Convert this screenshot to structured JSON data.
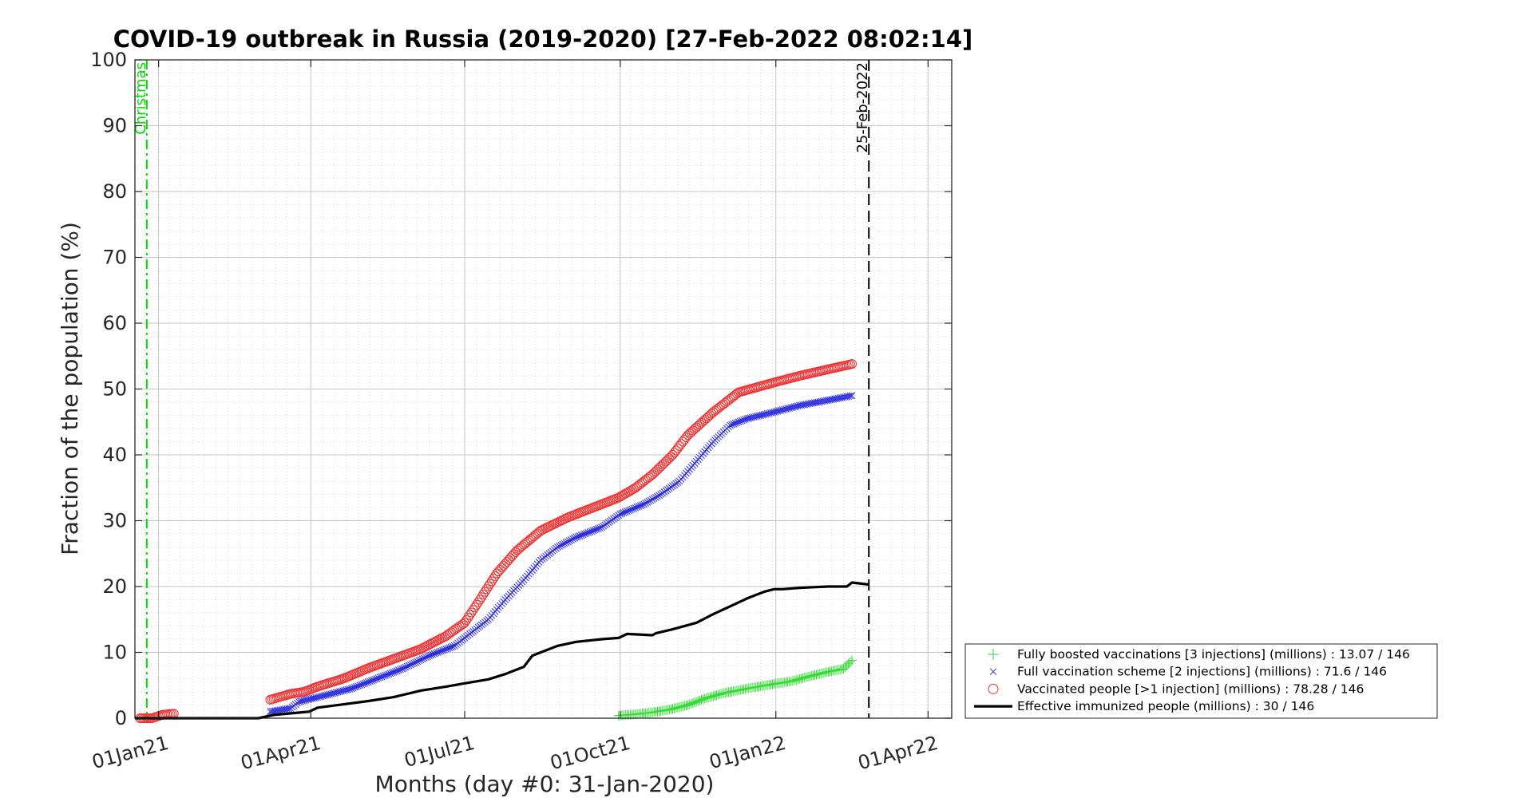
{
  "chart_data": {
    "type": "line",
    "title": "COVID-19 outbreak in Russia (2019-2020) [27-Feb-2022 08:02:14]",
    "xlabel": "Months (day #0: 31-Jan-2020)",
    "ylabel": "Fraction of the population (%)",
    "ylim": [
      0,
      100
    ],
    "xlim": [
      "2020-12-18",
      "2022-04-15"
    ],
    "grid": true,
    "legend_position": "bottom-right, outside plot",
    "yticks": [
      0,
      10,
      20,
      30,
      40,
      50,
      60,
      70,
      80,
      90,
      100
    ],
    "xticks": [
      {
        "date": "2021-01-01",
        "label": "01Jan21"
      },
      {
        "date": "2021-04-01",
        "label": "01Apr21"
      },
      {
        "date": "2021-07-01",
        "label": "01Jul21"
      },
      {
        "date": "2021-10-01",
        "label": "01Oct21"
      },
      {
        "date": "2022-01-01",
        "label": "01Jan22"
      },
      {
        "date": "2022-04-01",
        "label": "01Apr22"
      }
    ],
    "vlines": [
      {
        "date": "2020-12-25",
        "label": "Christmas",
        "color": "#00dd00",
        "style": "dashdot"
      },
      {
        "date": "2022-02-25",
        "label": "25-Feb-2022",
        "color": "#000000",
        "style": "dashed"
      }
    ],
    "series": [
      {
        "name": "Fully boosted vaccinations [3 injections] (millions) : 13.07 / 146",
        "marker": "plus",
        "color": "#33dd33",
        "points": [
          [
            "2021-09-30",
            0.4
          ],
          [
            "2021-10-10",
            0.6
          ],
          [
            "2021-10-20",
            0.9
          ],
          [
            "2021-10-30",
            1.3
          ],
          [
            "2021-11-10",
            2.0
          ],
          [
            "2021-11-20",
            3.0
          ],
          [
            "2021-12-01",
            3.8
          ],
          [
            "2021-12-15",
            4.5
          ],
          [
            "2021-12-31",
            5.2
          ],
          [
            "2022-01-10",
            5.6
          ],
          [
            "2022-01-20",
            6.3
          ],
          [
            "2022-01-31",
            7.0
          ],
          [
            "2022-02-10",
            7.5
          ],
          [
            "2022-02-15",
            8.8
          ]
        ]
      },
      {
        "name": "Full vaccination scheme [2 injections] (millions) : 71.6 / 146",
        "marker": "x",
        "color": "#2a2ae0",
        "points": [
          [
            "2021-03-08",
            1.0
          ],
          [
            "2021-03-20",
            1.5
          ],
          [
            "2021-03-25",
            2.5
          ],
          [
            "2021-04-10",
            3.5
          ],
          [
            "2021-04-25",
            4.5
          ],
          [
            "2021-05-10",
            6.0
          ],
          [
            "2021-05-25",
            7.5
          ],
          [
            "2021-06-10",
            9.5
          ],
          [
            "2021-06-25",
            11.0
          ],
          [
            "2021-07-05",
            13.0
          ],
          [
            "2021-07-15",
            15.0
          ],
          [
            "2021-07-25",
            18.0
          ],
          [
            "2021-08-05",
            21.0
          ],
          [
            "2021-08-15",
            24.0
          ],
          [
            "2021-08-25",
            26.0
          ],
          [
            "2021-09-05",
            27.5
          ],
          [
            "2021-09-20",
            29.0
          ],
          [
            "2021-10-01",
            31.0
          ],
          [
            "2021-10-15",
            32.5
          ],
          [
            "2021-10-25",
            34.0
          ],
          [
            "2021-11-05",
            36.0
          ],
          [
            "2021-11-15",
            39.0
          ],
          [
            "2021-11-25",
            42.0
          ],
          [
            "2021-12-05",
            44.5
          ],
          [
            "2021-12-15",
            45.5
          ],
          [
            "2021-12-31",
            46.5
          ],
          [
            "2022-01-15",
            47.5
          ],
          [
            "2022-02-01",
            48.3
          ],
          [
            "2022-02-15",
            49.0
          ]
        ]
      },
      {
        "name": "Vaccinated people [>1 injection] (millions) : 78.28 / 146",
        "marker": "circle",
        "color": "#ee3333",
        "points": [
          [
            "2020-12-21",
            0.0
          ],
          [
            "2020-12-28",
            0.0
          ],
          [
            "2021-01-03",
            0.5
          ],
          [
            "2021-01-10",
            0.7
          ],
          [
            "2021-03-08",
            2.8
          ],
          [
            "2021-03-20",
            3.7
          ],
          [
            "2021-03-28",
            4.0
          ],
          [
            "2021-04-05",
            4.8
          ],
          [
            "2021-04-20",
            6.0
          ],
          [
            "2021-05-05",
            7.6
          ],
          [
            "2021-05-20",
            9.0
          ],
          [
            "2021-06-05",
            10.5
          ],
          [
            "2021-06-20",
            12.5
          ],
          [
            "2021-07-01",
            14.5
          ],
          [
            "2021-07-10",
            18.0
          ],
          [
            "2021-07-20",
            22.0
          ],
          [
            "2021-08-01",
            25.5
          ],
          [
            "2021-08-15",
            28.5
          ],
          [
            "2021-08-31",
            30.5
          ],
          [
            "2021-09-15",
            32.0
          ],
          [
            "2021-09-30",
            33.5
          ],
          [
            "2021-10-10",
            35.0
          ],
          [
            "2021-10-20",
            37.0
          ],
          [
            "2021-11-01",
            40.0
          ],
          [
            "2021-11-10",
            43.0
          ],
          [
            "2021-11-25",
            46.5
          ],
          [
            "2021-12-10",
            49.5
          ],
          [
            "2021-12-31",
            51.0
          ],
          [
            "2022-01-15",
            52.0
          ],
          [
            "2022-02-01",
            53.0
          ],
          [
            "2022-02-15",
            53.8
          ]
        ]
      },
      {
        "name": "Effective immunized people (millions) : 30 / 146",
        "marker": "line",
        "color": "#000000",
        "points": [
          [
            "2020-12-18",
            0.0
          ],
          [
            "2021-03-01",
            0.0
          ],
          [
            "2021-03-10",
            0.5
          ],
          [
            "2021-03-31",
            1.0
          ],
          [
            "2021-04-05",
            1.6
          ],
          [
            "2021-04-20",
            2.1
          ],
          [
            "2021-05-05",
            2.6
          ],
          [
            "2021-05-20",
            3.2
          ],
          [
            "2021-06-05",
            4.2
          ],
          [
            "2021-06-20",
            4.8
          ],
          [
            "2021-07-01",
            5.3
          ],
          [
            "2021-07-15",
            5.9
          ],
          [
            "2021-07-25",
            6.7
          ],
          [
            "2021-08-05",
            7.8
          ],
          [
            "2021-08-10",
            9.5
          ],
          [
            "2021-08-25",
            11.0
          ],
          [
            "2021-09-05",
            11.6
          ],
          [
            "2021-09-20",
            12.0
          ],
          [
            "2021-09-30",
            12.2
          ],
          [
            "2021-10-05",
            12.8
          ],
          [
            "2021-10-20",
            12.6
          ],
          [
            "2021-10-22",
            12.9
          ],
          [
            "2021-11-01",
            13.5
          ],
          [
            "2021-11-15",
            14.5
          ],
          [
            "2021-11-25",
            15.8
          ],
          [
            "2021-12-05",
            17.0
          ],
          [
            "2021-12-15",
            18.2
          ],
          [
            "2021-12-25",
            19.2
          ],
          [
            "2021-12-31",
            19.6
          ],
          [
            "2022-01-05",
            19.6
          ],
          [
            "2022-01-15",
            19.8
          ],
          [
            "2022-02-01",
            20.0
          ],
          [
            "2022-02-12",
            20.0
          ],
          [
            "2022-02-15",
            20.6
          ],
          [
            "2022-02-25",
            20.3
          ]
        ]
      }
    ]
  }
}
